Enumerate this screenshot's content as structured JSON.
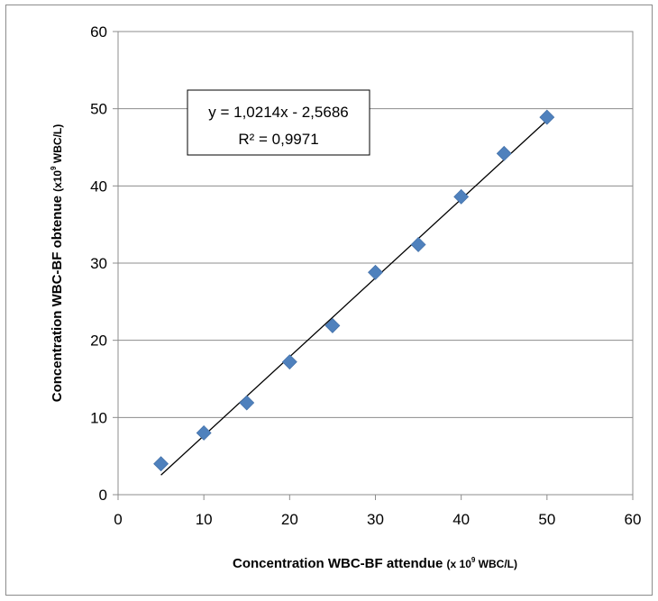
{
  "chart_data": {
    "type": "scatter",
    "series": [
      {
        "x": [
          5,
          10,
          15,
          20,
          25,
          30,
          35,
          40,
          45,
          50
        ],
        "y": [
          4.0,
          8.0,
          11.9,
          17.2,
          21.9,
          28.8,
          32.4,
          38.6,
          44.2,
          48.9
        ]
      }
    ],
    "trendline": {
      "slope": 1.0214,
      "intercept": -2.5686,
      "x_range": [
        5,
        50
      ]
    },
    "annotation": {
      "line1": "y = 1,0214x - 2,5686",
      "line2": "R² = 0,9971"
    },
    "xlabel": {
      "main": "Concentration WBC-BF attendue ",
      "unit_pre": "(x 10",
      "unit_sup": "9",
      "unit_post": " WBC/L)"
    },
    "ylabel": {
      "main": "Concentration WBC-BF obtenue ",
      "unit_pre": "(x10",
      "unit_sup": "9",
      "unit_post": " WBC/L)"
    },
    "xlim": [
      0,
      60
    ],
    "ylim": [
      0,
      60
    ],
    "xticks": [
      0,
      10,
      20,
      30,
      40,
      50,
      60
    ],
    "yticks": [
      0,
      10,
      20,
      30,
      40,
      50,
      60
    ],
    "grid": "horizontal",
    "marker_color": "#4f81bd",
    "line_color": "#000000"
  }
}
